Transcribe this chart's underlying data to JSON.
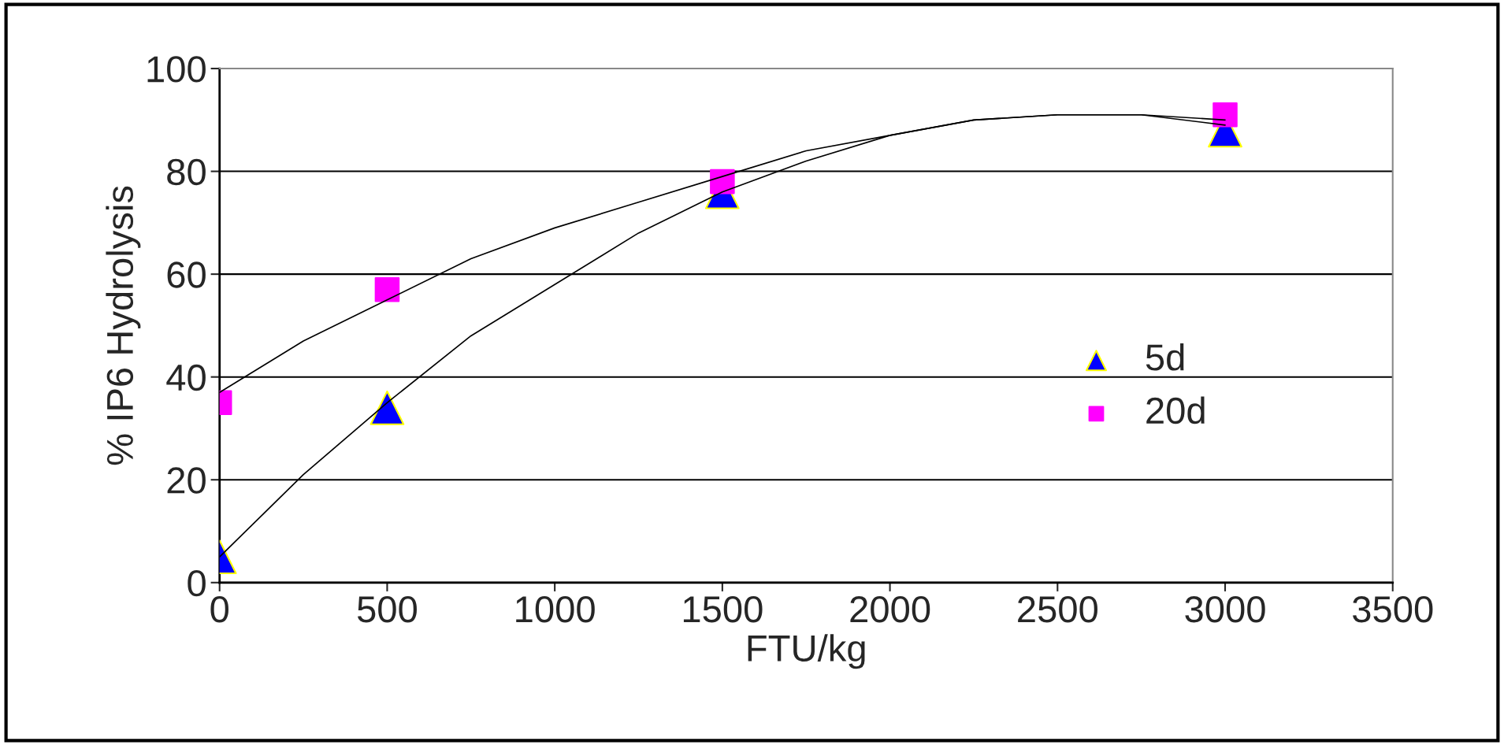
{
  "chart_data": {
    "type": "scatter",
    "xlabel": "FTU/kg",
    "ylabel": "% IP6 Hydrolysis",
    "xlim": [
      0,
      3500
    ],
    "xticks": [
      0,
      500,
      1000,
      1500,
      2000,
      2500,
      3000,
      3500
    ],
    "ylim": [
      0,
      100
    ],
    "yticks": [
      0,
      20,
      40,
      60,
      80,
      100
    ],
    "grid": "y",
    "legend": "right",
    "series": [
      {
        "type": "line",
        "color": "#000000",
        "marker": "none",
        "x": [
          0,
          250,
          500,
          750,
          1000,
          1250,
          1500,
          1750,
          2000,
          2250,
          2500,
          2750,
          3000
        ],
        "values": [
          5,
          21,
          35,
          48,
          58,
          68,
          76,
          82,
          87,
          90,
          91,
          91,
          89
        ]
      },
      {
        "type": "line",
        "color": "#000000",
        "marker": "none",
        "x": [
          0,
          250,
          500,
          750,
          1000,
          1250,
          1500,
          1750,
          2000,
          2250,
          2500,
          2750,
          3000
        ],
        "values": [
          37,
          47,
          55,
          63,
          69,
          74,
          79,
          84,
          87,
          90,
          91,
          91,
          90
        ]
      },
      {
        "name": "5d",
        "color": "#0000ff",
        "marker": "triangle",
        "x": [
          0,
          500,
          1500,
          3000
        ],
        "values": [
          5,
          34,
          76,
          88
        ]
      },
      {
        "name": "20d",
        "color": "#ff00ff",
        "marker": "square",
        "x": [
          0,
          500,
          1500,
          3000
        ],
        "values": [
          35,
          57,
          78,
          91
        ]
      }
    ]
  }
}
